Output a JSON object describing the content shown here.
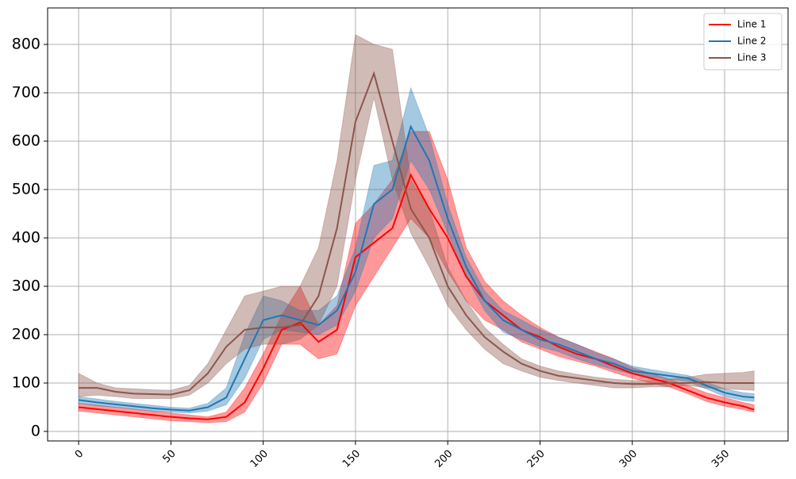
{
  "chart_data": {
    "type": "line",
    "x": [
      0,
      10,
      20,
      30,
      40,
      50,
      60,
      70,
      80,
      90,
      100,
      110,
      120,
      130,
      140,
      150,
      160,
      170,
      180,
      190,
      200,
      210,
      220,
      230,
      240,
      250,
      260,
      270,
      280,
      290,
      300,
      310,
      320,
      330,
      340,
      350,
      360,
      366
    ],
    "series": [
      {
        "name": "Line 1",
        "color": "#ff0000",
        "values": [
          50,
          46,
          42,
          38,
          34,
          30,
          27,
          25,
          30,
          60,
          130,
          210,
          225,
          185,
          210,
          360,
          390,
          420,
          530,
          460,
          400,
          320,
          270,
          240,
          210,
          195,
          175,
          160,
          150,
          135,
          120,
          110,
          100,
          85,
          70,
          60,
          52,
          45
        ],
        "upper": [
          58,
          54,
          50,
          46,
          42,
          38,
          34,
          30,
          40,
          90,
          160,
          240,
          300,
          220,
          260,
          430,
          470,
          520,
          620,
          620,
          520,
          380,
          310,
          270,
          240,
          215,
          195,
          180,
          165,
          150,
          132,
          120,
          108,
          95,
          80,
          70,
          60,
          55
        ],
        "lower": [
          42,
          38,
          34,
          30,
          26,
          22,
          20,
          18,
          20,
          40,
          100,
          180,
          180,
          150,
          160,
          260,
          320,
          380,
          440,
          400,
          330,
          270,
          230,
          210,
          185,
          170,
          155,
          145,
          135,
          122,
          110,
          100,
          92,
          78,
          62,
          52,
          45,
          40
        ]
      },
      {
        "name": "Line 2",
        "color": "#1f77b4",
        "values": [
          65,
          60,
          56,
          52,
          48,
          45,
          43,
          50,
          70,
          150,
          230,
          240,
          230,
          220,
          250,
          330,
          470,
          500,
          630,
          560,
          440,
          340,
          270,
          230,
          210,
          190,
          180,
          165,
          150,
          140,
          125,
          120,
          115,
          110,
          95,
          80,
          72,
          70
        ],
        "upper": [
          72,
          67,
          62,
          58,
          54,
          50,
          48,
          58,
          90,
          200,
          280,
          270,
          250,
          250,
          280,
          380,
          550,
          560,
          710,
          610,
          470,
          360,
          290,
          250,
          230,
          210,
          195,
          180,
          163,
          150,
          135,
          128,
          122,
          116,
          102,
          88,
          80,
          78
        ],
        "lower": [
          58,
          53,
          50,
          46,
          42,
          40,
          38,
          42,
          55,
          110,
          190,
          210,
          205,
          200,
          220,
          290,
          400,
          440,
          560,
          500,
          410,
          320,
          250,
          205,
          190,
          175,
          165,
          150,
          138,
          128,
          118,
          112,
          108,
          103,
          88,
          72,
          64,
          62
        ]
      },
      {
        "name": "Line 3",
        "color": "#8c564b",
        "values": [
          90,
          90,
          82,
          78,
          77,
          76,
          85,
          120,
          175,
          210,
          215,
          215,
          220,
          280,
          420,
          640,
          740,
          600,
          460,
          400,
          300,
          240,
          195,
          165,
          140,
          125,
          115,
          110,
          105,
          100,
          98,
          98,
          100,
          100,
          102,
          100,
          100,
          100
        ],
        "upper": [
          120,
          100,
          90,
          88,
          86,
          85,
          95,
          140,
          210,
          280,
          290,
          300,
          300,
          380,
          560,
          820,
          800,
          790,
          520,
          460,
          340,
          270,
          215,
          180,
          150,
          135,
          125,
          118,
          112,
          108,
          105,
          105,
          108,
          112,
          118,
          120,
          122,
          125
        ],
        "lower": [
          72,
          75,
          72,
          68,
          68,
          68,
          75,
          100,
          140,
          170,
          180,
          180,
          190,
          220,
          300,
          520,
          690,
          520,
          410,
          340,
          260,
          210,
          170,
          140,
          125,
          112,
          105,
          100,
          95,
          90,
          90,
          92,
          92,
          95,
          90,
          88,
          86,
          85
        ]
      }
    ],
    "xlim": [
      -16.8,
      384.4
    ],
    "ylim": [
      -19.7,
      875.4
    ],
    "xticks": [
      0,
      50,
      100,
      150,
      200,
      250,
      300,
      350
    ],
    "yticks": [
      0,
      100,
      200,
      300,
      400,
      500,
      600,
      700,
      800
    ],
    "grid": true,
    "legend": "upper right"
  }
}
